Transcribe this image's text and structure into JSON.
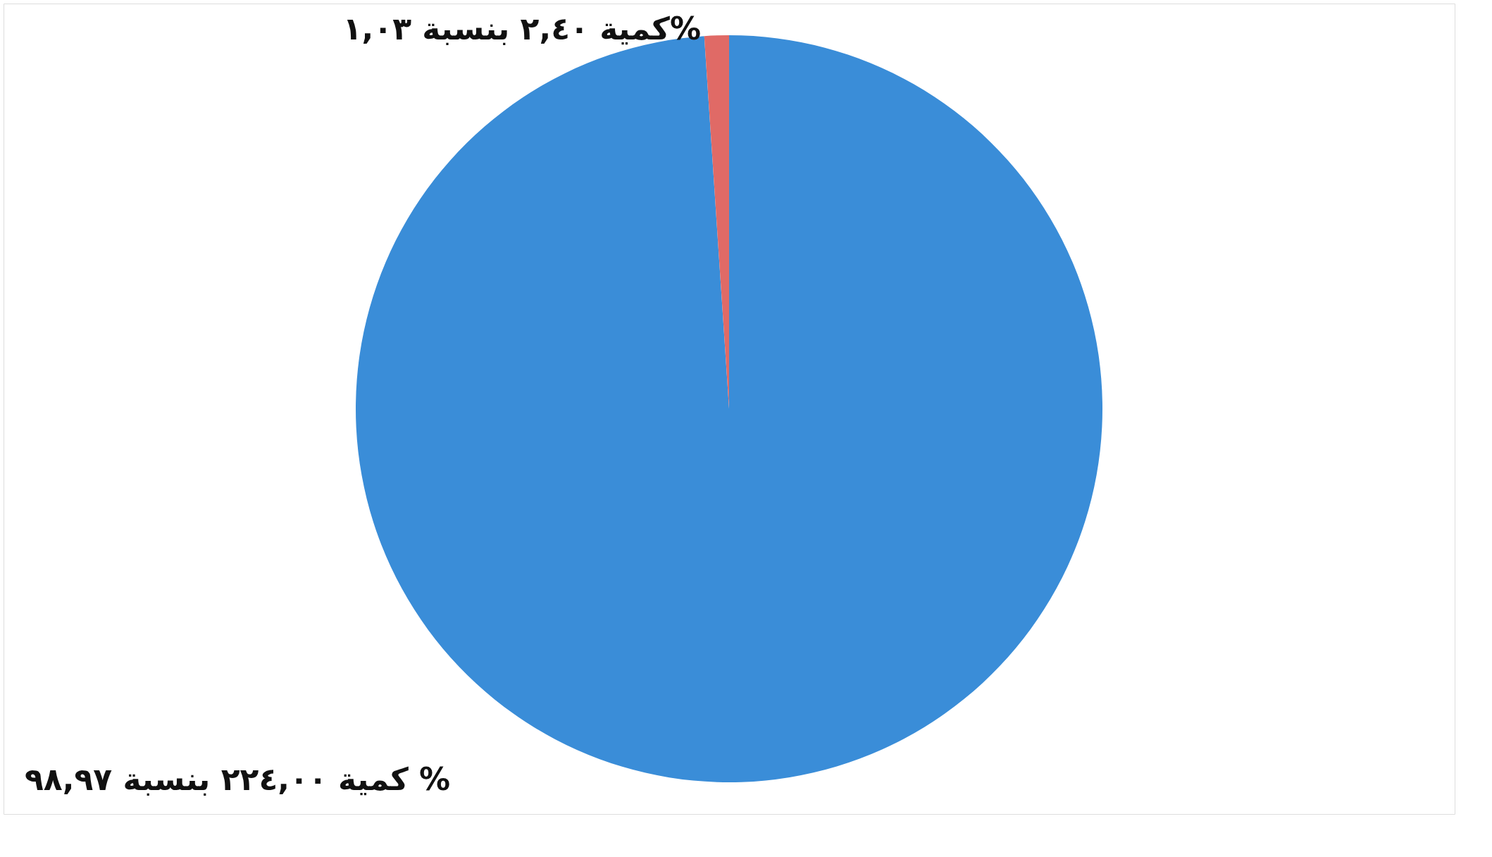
{
  "chart_data": {
    "type": "pie",
    "categories": [
      null,
      null
    ],
    "values": [
      224.0,
      2.4
    ],
    "colors": [
      "#3a8dd8",
      "#e06a66"
    ],
    "value_labels": [
      "كمية ٢٢٤,٠٠ بنسبة ٩٨,٩٧ %",
      "كمية ٢,٤٠ بنسبة ١,٠٣%"
    ],
    "legend": false
  }
}
